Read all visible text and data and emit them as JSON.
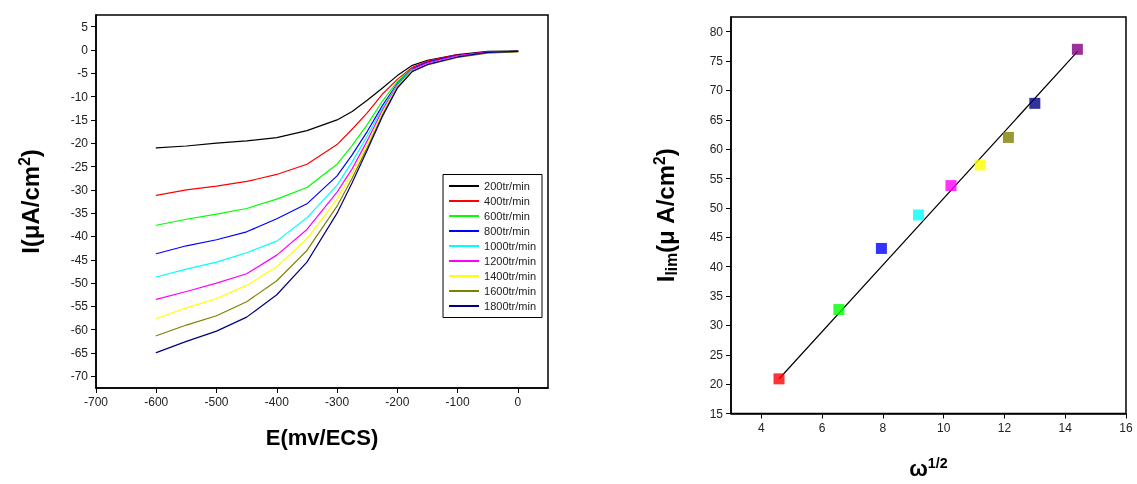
{
  "chart_data": [
    {
      "type": "line",
      "xlabel": "E(mv/ECS)",
      "ylabel": "I(μA/cm$^{2}$)",
      "xlim": [
        -700,
        50
      ],
      "xticks": [
        -700,
        -600,
        -500,
        -400,
        -300,
        -200,
        -100,
        0
      ],
      "ylim": [
        -72.5,
        7.5
      ],
      "yticks": [
        -70,
        -65,
        -60,
        -55,
        -50,
        -45,
        -40,
        -35,
        -30,
        -25,
        -20,
        -15,
        -10,
        -5,
        0,
        5
      ],
      "grid": false,
      "legend": "right",
      "marker": "none",
      "line_style": "solid",
      "x": [
        -600,
        -550,
        -500,
        -450,
        -400,
        -350,
        -300,
        -275,
        -250,
        -225,
        -200,
        -175,
        -150,
        -100,
        -50,
        0
      ],
      "series": [
        {
          "name": "200tr/min",
          "color": "#000000",
          "values": [
            -21,
            -20.6,
            -20,
            -19.5,
            -18.8,
            -17.3,
            -15,
            -13.2,
            -10.8,
            -8.2,
            -5.5,
            -3.3,
            -2.2,
            -1,
            -0.3,
            -0.2
          ]
        },
        {
          "name": "400tr/min",
          "color": "#ff0000",
          "values": [
            -31.2,
            -30,
            -29.2,
            -28.2,
            -26.7,
            -24.5,
            -20.3,
            -17,
            -13.5,
            -9.5,
            -6.3,
            -3.7,
            -2.4,
            -1,
            null,
            null
          ]
        },
        {
          "name": "600tr/min",
          "color": "#00ff00",
          "values": [
            -37.6,
            -36.3,
            -35.2,
            -34,
            -32,
            -29.5,
            -24.5,
            -20.5,
            -16,
            -11,
            -6.8,
            -3.9,
            null,
            null,
            null,
            null
          ]
        },
        {
          "name": "800tr/min",
          "color": "#0000ff",
          "values": [
            -43.7,
            -42,
            -40.7,
            -39,
            -36.2,
            -33,
            -27,
            -22.5,
            -17.5,
            -12,
            -7.2,
            -4,
            -2.6,
            -1.1,
            null,
            null
          ]
        },
        {
          "name": "1000tr/min",
          "color": "#00ffff",
          "values": [
            -48.7,
            -47,
            -45.5,
            -43.5,
            -41,
            -36,
            -29,
            -24,
            -18.5,
            -12.5,
            -7.4,
            -4.1,
            null,
            null,
            null,
            null
          ]
        },
        {
          "name": "1200tr/min",
          "color": "#ff00ff",
          "values": [
            -53.5,
            -51.8,
            -50,
            -48,
            -44,
            -38.5,
            -30.5,
            -25.5,
            -19.5,
            -13,
            -7.6,
            -4.2,
            -2.8,
            -1.2,
            -0.4,
            -0.3
          ]
        },
        {
          "name": "1400tr/min",
          "color": "#ffff00",
          "values": [
            -57.6,
            -55.3,
            -53.3,
            -50.5,
            -46.5,
            -40.5,
            -32,
            -26.5,
            -20.3,
            -13.5,
            -7.8,
            -4.4,
            null,
            null,
            null,
            null
          ]
        },
        {
          "name": "1600tr/min",
          "color": "#808000",
          "values": [
            -61.3,
            -59,
            -57,
            -54,
            -49.5,
            -43,
            -33.5,
            -27.5,
            -21,
            -14,
            -8,
            -4.6,
            -3.2,
            -1.6,
            -0.7,
            -0.4
          ]
        },
        {
          "name": "1800tr/min",
          "color": "#000080",
          "values": [
            -64.9,
            -62.5,
            -60.3,
            -57.3,
            -52.5,
            -45.5,
            -35,
            -28.5,
            -21.5,
            -14.3,
            -8.2,
            -4.6,
            -3.1,
            -1.5,
            -0.5,
            -0.3
          ]
        }
      ]
    },
    {
      "type": "scatter",
      "xlabel": "ω$^{1/2}$",
      "ylabel": "I$_{lim}$(μ A/cm$^{2}$)",
      "xlim": [
        3,
        16
      ],
      "xticks": [
        4,
        6,
        8,
        10,
        12,
        14,
        16
      ],
      "ylim": [
        15,
        82.5
      ],
      "yticks": [
        15,
        20,
        25,
        30,
        35,
        40,
        45,
        50,
        55,
        60,
        65,
        70,
        75,
        80
      ],
      "grid": false,
      "legend": false,
      "series": [
        {
          "marker": "square",
          "x": [
            4.58,
            6.55,
            7.95,
            9.17,
            10.24,
            11.2,
            12.13,
            13.0,
            14.4
          ],
          "values": [
            20.9,
            32.7,
            43.1,
            48.8,
            53.8,
            57.3,
            62.0,
            67.8,
            77.0
          ],
          "colors": [
            "#ff0000",
            "#00ff00",
            "#0000ff",
            "#00ffff",
            "#ff00ff",
            "#ffff00",
            "#808000",
            "#000080",
            "#800080"
          ]
        },
        {
          "type": "line",
          "color": "#000000",
          "x": [
            4.6,
            14.4
          ],
          "values": [
            21,
            76.6
          ]
        }
      ]
    }
  ]
}
